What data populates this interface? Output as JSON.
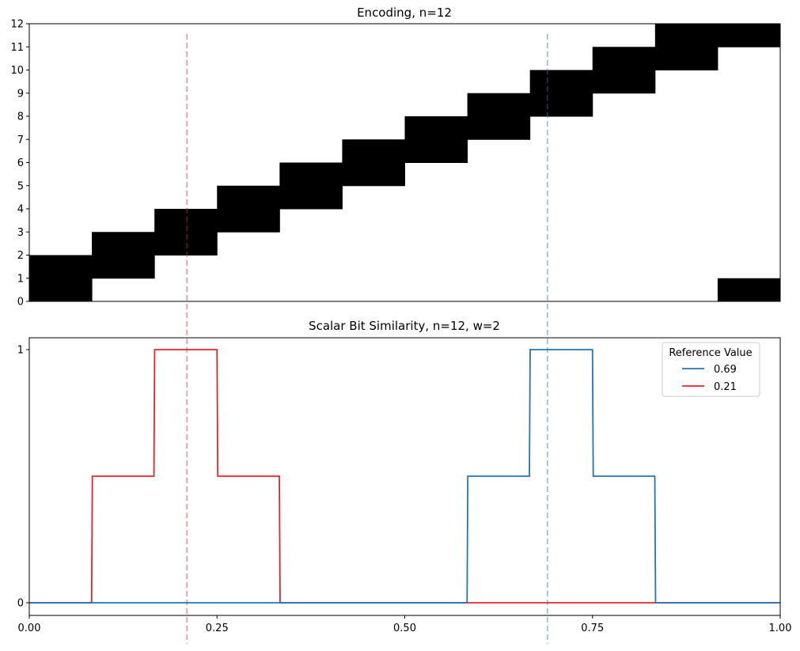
{
  "chart_data": [
    {
      "type": "heatmap",
      "title": "Encoding, n=12",
      "n_bits": 12,
      "n_buckets": 12,
      "ylim": [
        0,
        12
      ],
      "yticks": [
        "0",
        "1",
        "2",
        "3",
        "4",
        "5",
        "6",
        "7",
        "8",
        "9",
        "10",
        "11",
        "12"
      ],
      "grid": false,
      "cells": [
        {
          "bucket": 0,
          "bits": [
            0,
            1
          ]
        },
        {
          "bucket": 1,
          "bits": [
            1,
            2
          ]
        },
        {
          "bucket": 2,
          "bits": [
            2,
            3
          ]
        },
        {
          "bucket": 3,
          "bits": [
            3,
            4
          ]
        },
        {
          "bucket": 4,
          "bits": [
            4,
            5
          ]
        },
        {
          "bucket": 5,
          "bits": [
            5,
            6
          ]
        },
        {
          "bucket": 6,
          "bits": [
            6,
            7
          ]
        },
        {
          "bucket": 7,
          "bits": [
            7,
            8
          ]
        },
        {
          "bucket": 8,
          "bits": [
            8,
            9
          ]
        },
        {
          "bucket": 9,
          "bits": [
            9,
            10
          ]
        },
        {
          "bucket": 10,
          "bits": [
            10,
            11
          ]
        },
        {
          "bucket": 11,
          "bits": [
            11,
            0
          ]
        }
      ],
      "reference_lines": [
        {
          "x": 0.21,
          "color": "#e3242b"
        },
        {
          "x": 0.69,
          "color": "#1f77b4"
        }
      ]
    },
    {
      "type": "line",
      "title": "Scalar Bit Similarity, n=12, w=2",
      "xlim": [
        0,
        1
      ],
      "ylim": [
        0,
        1
      ],
      "xticks": [
        "0.00",
        "0.25",
        "0.50",
        "0.75",
        "1.00"
      ],
      "yticks": [
        "0",
        "1"
      ],
      "legend_title": "Reference Value",
      "legend_position": "top-right",
      "grid": false,
      "series": [
        {
          "name": "0.69",
          "color": "#1f77b4",
          "points": [
            [
              0,
              0
            ],
            [
              0.583,
              0
            ],
            [
              0.584,
              0.5
            ],
            [
              0.666,
              0.5
            ],
            [
              0.667,
              1
            ],
            [
              0.75,
              1
            ],
            [
              0.751,
              0.5
            ],
            [
              0.833,
              0.5
            ],
            [
              0.834,
              0
            ],
            [
              1.0,
              0
            ]
          ]
        },
        {
          "name": "0.21",
          "color": "#e3242b",
          "points": [
            [
              0,
              0
            ],
            [
              0.083,
              0
            ],
            [
              0.084,
              0.5
            ],
            [
              0.166,
              0.5
            ],
            [
              0.167,
              1
            ],
            [
              0.25,
              1
            ],
            [
              0.251,
              0.5
            ],
            [
              0.333,
              0.5
            ],
            [
              0.334,
              0
            ],
            [
              1.0,
              0
            ]
          ]
        }
      ],
      "reference_lines": [
        {
          "x": 0.21,
          "color": "#e3242b"
        },
        {
          "x": 0.69,
          "color": "#1f77b4"
        }
      ]
    }
  ]
}
